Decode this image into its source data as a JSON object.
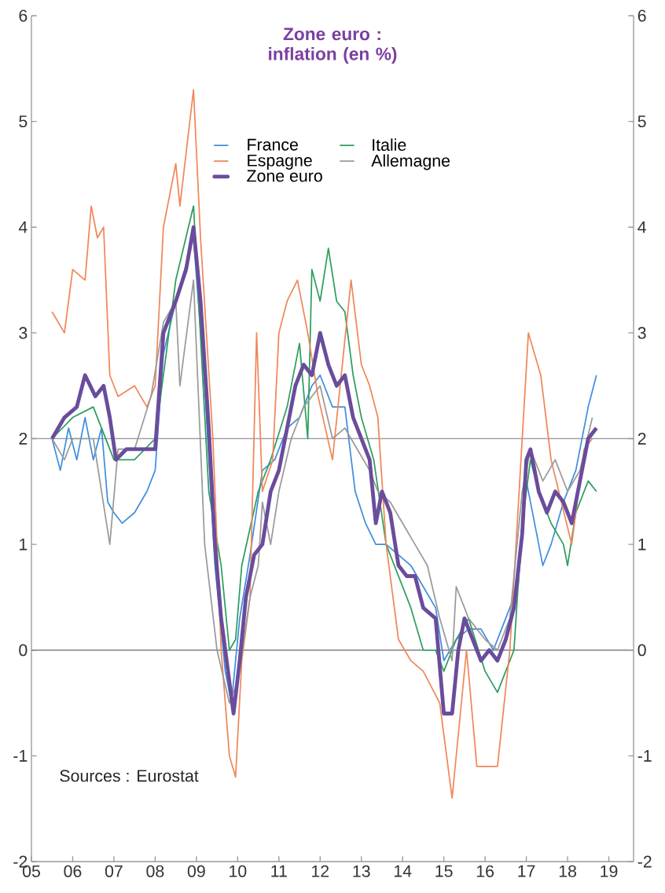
{
  "chart_data": {
    "type": "line",
    "title": "Zone euro : inflation (en %)",
    "legend": "top",
    "xlim": [
      2005,
      2019.6
    ],
    "ylim": [
      -2,
      6
    ],
    "y2lim": [
      -2,
      6
    ],
    "xticks": [
      {
        "value": 2005,
        "label": "05"
      },
      {
        "value": 2006,
        "label": "06"
      },
      {
        "value": 2007,
        "label": "07"
      },
      {
        "value": 2008,
        "label": "08"
      },
      {
        "value": 2009,
        "label": "09"
      },
      {
        "value": 2010,
        "label": "10"
      },
      {
        "value": 2011,
        "label": "11"
      },
      {
        "value": 2012,
        "label": "12"
      },
      {
        "value": 2013,
        "label": "13"
      },
      {
        "value": 2014,
        "label": "14"
      },
      {
        "value": 2015,
        "label": "15"
      },
      {
        "value": 2016,
        "label": "16"
      },
      {
        "value": 2017,
        "label": "17"
      },
      {
        "value": 2018,
        "label": "18"
      },
      {
        "value": 2019,
        "label": "19"
      }
    ],
    "yticks": [
      -2,
      -1,
      0,
      1,
      2,
      3,
      4,
      5,
      6
    ],
    "y2ticks": [
      -2,
      -1,
      0,
      1,
      2,
      3,
      4,
      5,
      6
    ],
    "ref_lines": [
      {
        "axis": "y",
        "value": 0,
        "color": "#808080"
      },
      {
        "axis": "y",
        "value": 2,
        "color": "#9a9aa8"
      }
    ],
    "annotations": [
      "Sources : Eurostat"
    ],
    "series": [
      {
        "name": "France",
        "color": "#3f8fdc",
        "x": [
          2005.5,
          2005.7,
          2005.9,
          2006.1,
          2006.3,
          2006.5,
          2006.7,
          2006.85,
          2007.0,
          2007.2,
          2007.5,
          2007.8,
          2008.0,
          2008.2,
          2008.5,
          2008.93,
          2009.2,
          2009.45,
          2009.7,
          2009.85,
          2010.05,
          2010.3,
          2010.6,
          2010.9,
          2011.2,
          2011.5,
          2011.8,
          2012.0,
          2012.3,
          2012.6,
          2012.85,
          2013.1,
          2013.35,
          2013.6,
          2013.9,
          2014.2,
          2014.5,
          2014.8,
          2015.0,
          2015.3,
          2015.6,
          2015.9,
          2016.2,
          2016.5,
          2016.8,
          2017.0,
          2017.2,
          2017.4,
          2017.6,
          2017.9,
          2018.2,
          2018.5,
          2018.7
        ],
        "values": [
          2.0,
          1.7,
          2.1,
          1.8,
          2.2,
          1.8,
          2.1,
          1.4,
          1.3,
          1.2,
          1.3,
          1.5,
          1.7,
          2.8,
          3.3,
          3.9,
          2.5,
          0.8,
          -0.2,
          -0.5,
          0.3,
          0.9,
          1.7,
          1.8,
          2.1,
          2.2,
          2.5,
          2.6,
          2.3,
          2.3,
          1.5,
          1.2,
          1.0,
          1.0,
          0.9,
          0.8,
          0.6,
          0.4,
          -0.1,
          0.1,
          0.2,
          0.2,
          0.0,
          0.3,
          0.6,
          1.6,
          1.2,
          0.8,
          1.0,
          1.4,
          1.7,
          2.3,
          2.6
        ]
      },
      {
        "name": "Italie",
        "color": "#2e9e5e",
        "x": [
          2005.5,
          2006.0,
          2006.5,
          2007.0,
          2007.5,
          2008.0,
          2008.5,
          2008.93,
          2009.3,
          2009.6,
          2009.8,
          2009.95,
          2010.1,
          2010.5,
          2010.8,
          2011.2,
          2011.5,
          2011.7,
          2011.8,
          2012.0,
          2012.2,
          2012.4,
          2012.6,
          2012.8,
          2013.0,
          2013.3,
          2013.6,
          2013.9,
          2014.2,
          2014.5,
          2014.8,
          2015.0,
          2015.3,
          2015.6,
          2016.0,
          2016.3,
          2016.7,
          2016.9,
          2017.1,
          2017.3,
          2017.6,
          2017.9,
          2018.0,
          2018.2,
          2018.5,
          2018.7
        ],
        "values": [
          2.0,
          2.2,
          2.3,
          1.8,
          1.8,
          2.0,
          3.5,
          4.2,
          1.5,
          0.8,
          0.0,
          0.1,
          0.8,
          1.5,
          1.8,
          2.3,
          2.9,
          2.0,
          3.6,
          3.3,
          3.8,
          3.3,
          3.2,
          2.6,
          2.2,
          1.8,
          1.0,
          0.7,
          0.4,
          0.0,
          0.0,
          -0.2,
          0.1,
          0.3,
          -0.2,
          -0.4,
          0.0,
          1.2,
          1.8,
          1.5,
          1.2,
          1.0,
          0.8,
          1.3,
          1.6,
          1.5
        ]
      },
      {
        "name": "Espagne",
        "color": "#f0875a",
        "x": [
          2005.5,
          2005.8,
          2006.0,
          2006.3,
          2006.45,
          2006.6,
          2006.75,
          2006.9,
          2007.1,
          2007.5,
          2007.8,
          2008.0,
          2008.2,
          2008.5,
          2008.6,
          2008.93,
          2009.1,
          2009.4,
          2009.6,
          2009.8,
          2009.95,
          2010.1,
          2010.3,
          2010.46,
          2010.6,
          2010.85,
          2011.0,
          2011.2,
          2011.45,
          2011.7,
          2011.95,
          2012.3,
          2012.75,
          2013.0,
          2013.2,
          2013.4,
          2013.6,
          2013.9,
          2014.2,
          2014.5,
          2014.9,
          2015.2,
          2015.55,
          2015.8,
          2016.3,
          2016.6,
          2017.05,
          2017.35,
          2017.6,
          2018.1,
          2018.4,
          2018.6
        ],
        "values": [
          3.2,
          3.0,
          3.6,
          3.5,
          4.2,
          3.9,
          4.0,
          2.6,
          2.4,
          2.5,
          2.3,
          2.5,
          4.0,
          4.6,
          4.2,
          5.3,
          3.9,
          2.0,
          0.0,
          -1.0,
          -1.2,
          -0.1,
          0.5,
          3.0,
          1.5,
          1.8,
          3.0,
          3.3,
          3.5,
          3.0,
          2.4,
          1.8,
          3.5,
          2.7,
          2.5,
          2.2,
          1.0,
          0.1,
          -0.1,
          -0.2,
          -0.5,
          -1.4,
          0.0,
          -1.1,
          -1.1,
          0.0,
          3.0,
          2.6,
          1.8,
          1.0,
          1.9,
          2.0
        ]
      },
      {
        "name": "Allemagne",
        "color": "#9a9a9a",
        "x": [
          2005.5,
          2005.8,
          2006.0,
          2006.5,
          2006.9,
          2007.1,
          2007.5,
          2007.9,
          2008.2,
          2008.5,
          2008.6,
          2008.93,
          2009.2,
          2009.5,
          2009.8,
          2010.0,
          2010.3,
          2010.5,
          2010.6,
          2010.8,
          2011.0,
          2011.3,
          2011.6,
          2012.0,
          2012.3,
          2012.6,
          2012.9,
          2013.2,
          2013.4,
          2013.7,
          2014.0,
          2014.3,
          2014.6,
          2014.9,
          2015.2,
          2015.3,
          2015.6,
          2016.0,
          2016.3,
          2016.6,
          2016.9,
          2017.1,
          2017.4,
          2017.7,
          2018.0,
          2018.3,
          2018.6
        ],
        "values": [
          2.0,
          1.8,
          2.0,
          2.0,
          1.0,
          1.9,
          1.9,
          2.4,
          3.1,
          3.3,
          2.5,
          3.5,
          1.0,
          0.0,
          -0.5,
          -0.3,
          0.5,
          0.8,
          1.4,
          1.0,
          1.5,
          2.0,
          2.3,
          2.5,
          2.0,
          2.1,
          1.9,
          1.7,
          1.5,
          1.4,
          1.2,
          1.0,
          0.8,
          0.3,
          -0.1,
          0.6,
          0.3,
          0.1,
          0.0,
          0.3,
          1.5,
          1.9,
          1.6,
          1.8,
          1.5,
          1.7,
          2.2
        ]
      },
      {
        "name": "Zone euro",
        "color": "#6a4c9c",
        "x": [
          2005.5,
          2005.8,
          2006.1,
          2006.3,
          2006.55,
          2006.75,
          2006.9,
          2007.05,
          2007.3,
          2007.6,
          2007.85,
          2008.0,
          2008.2,
          2008.5,
          2008.75,
          2008.93,
          2009.1,
          2009.3,
          2009.45,
          2009.6,
          2009.8,
          2009.9,
          2010.05,
          2010.2,
          2010.4,
          2010.6,
          2010.8,
          2011.0,
          2011.2,
          2011.4,
          2011.6,
          2011.8,
          2012.0,
          2012.2,
          2012.4,
          2012.6,
          2012.8,
          2013.0,
          2013.2,
          2013.35,
          2013.5,
          2013.7,
          2013.9,
          2014.1,
          2014.3,
          2014.5,
          2014.8,
          2015.0,
          2015.2,
          2015.35,
          2015.5,
          2015.7,
          2015.9,
          2016.1,
          2016.3,
          2016.5,
          2016.7,
          2016.9,
          2017.0,
          2017.1,
          2017.3,
          2017.5,
          2017.7,
          2017.9,
          2018.1,
          2018.3,
          2018.5,
          2018.7
        ],
        "values": [
          2.0,
          2.2,
          2.3,
          2.6,
          2.4,
          2.5,
          2.2,
          1.8,
          1.9,
          1.9,
          1.9,
          1.9,
          3.0,
          3.3,
          3.6,
          4.0,
          3.3,
          2.1,
          1.0,
          0.3,
          -0.3,
          -0.6,
          -0.1,
          0.5,
          0.9,
          1.0,
          1.5,
          1.7,
          2.1,
          2.5,
          2.7,
          2.6,
          3.0,
          2.7,
          2.5,
          2.6,
          2.2,
          2.0,
          1.8,
          1.2,
          1.5,
          1.3,
          0.8,
          0.7,
          0.7,
          0.4,
          0.3,
          -0.6,
          -0.6,
          0.0,
          0.3,
          0.1,
          -0.1,
          0.0,
          -0.1,
          0.1,
          0.4,
          1.1,
          1.8,
          1.9,
          1.5,
          1.3,
          1.5,
          1.4,
          1.2,
          1.6,
          2.0,
          2.1
        ]
      }
    ]
  }
}
